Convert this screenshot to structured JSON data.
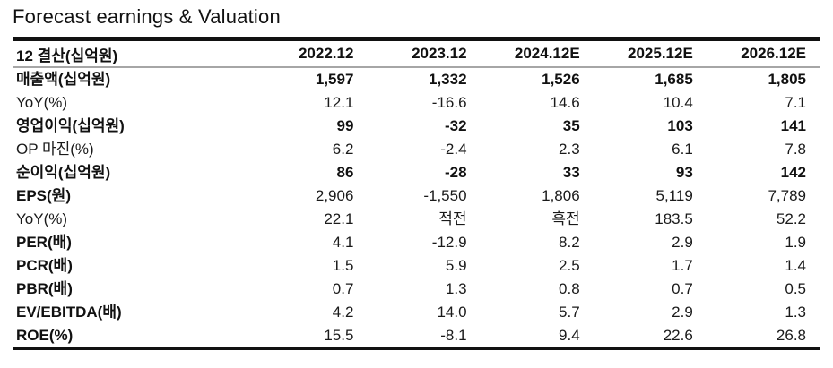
{
  "title": "Forecast earnings & Valuation",
  "table": {
    "header": {
      "label": "12 결산(십억원)",
      "columns": [
        "2022.12",
        "2023.12",
        "2024.12E",
        "2025.12E",
        "2026.12E"
      ]
    },
    "rows": [
      {
        "label": "매출액(십억원)",
        "values": [
          "1,597",
          "1,332",
          "1,526",
          "1,685",
          "1,805"
        ],
        "bold_label": true,
        "bold_values": true
      },
      {
        "label": "YoY(%)",
        "values": [
          "12.1",
          "-16.6",
          "14.6",
          "10.4",
          "7.1"
        ],
        "bold_label": false,
        "bold_values": false
      },
      {
        "label": "영업이익(십억원)",
        "values": [
          "99",
          "-32",
          "35",
          "103",
          "141"
        ],
        "bold_label": true,
        "bold_values": true
      },
      {
        "label": "OP 마진(%)",
        "values": [
          "6.2",
          "-2.4",
          "2.3",
          "6.1",
          "7.8"
        ],
        "bold_label": false,
        "bold_values": false
      },
      {
        "label": "순이익(십억원)",
        "values": [
          "86",
          "-28",
          "33",
          "93",
          "142"
        ],
        "bold_label": true,
        "bold_values": true
      },
      {
        "label": "EPS(원)",
        "values": [
          "2,906",
          "-1,550",
          "1,806",
          "5,119",
          "7,789"
        ],
        "bold_label": true,
        "bold_values": false
      },
      {
        "label": "YoY(%)",
        "values": [
          "22.1",
          "적전",
          "흑전",
          "183.5",
          "52.2"
        ],
        "bold_label": false,
        "bold_values": false
      },
      {
        "label": "PER(배)",
        "values": [
          "4.1",
          "-12.9",
          "8.2",
          "2.9",
          "1.9"
        ],
        "bold_label": true,
        "bold_values": false
      },
      {
        "label": "PCR(배)",
        "values": [
          "1.5",
          "5.9",
          "2.5",
          "1.7",
          "1.4"
        ],
        "bold_label": true,
        "bold_values": false
      },
      {
        "label": "PBR(배)",
        "values": [
          "0.7",
          "1.3",
          "0.8",
          "0.7",
          "0.5"
        ],
        "bold_label": true,
        "bold_values": false
      },
      {
        "label": "EV/EBITDA(배)",
        "values": [
          "4.2",
          "14.0",
          "5.7",
          "2.9",
          "1.3"
        ],
        "bold_label": true,
        "bold_values": false
      },
      {
        "label": "ROE(%)",
        "values": [
          "15.5",
          "-8.1",
          "9.4",
          "22.6",
          "26.8"
        ],
        "bold_label": true,
        "bold_values": false
      }
    ]
  },
  "colors": {
    "text": "#1a1a1a",
    "border_heavy": "#111111",
    "border_light": "#a6a6a6",
    "background": "#ffffff"
  }
}
